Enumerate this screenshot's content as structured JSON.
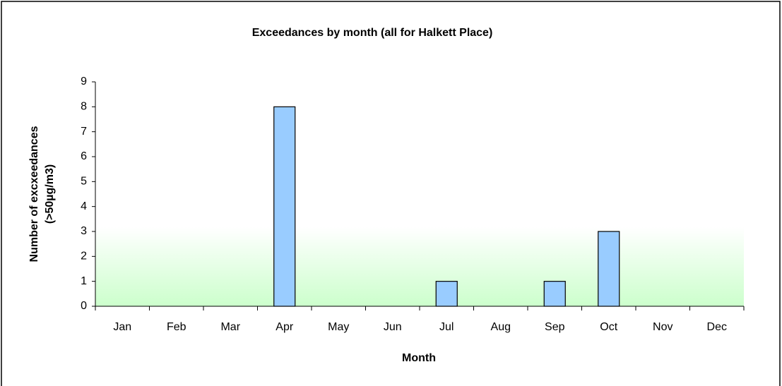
{
  "chart_data": {
    "type": "bar",
    "title": "Exceedances by month (all for Halkett Place)",
    "xlabel": "Month",
    "ylabel": [
      "Number of excxeedances",
      "(>50µg/m3)"
    ],
    "categories": [
      "Jan",
      "Feb",
      "Mar",
      "Apr",
      "May",
      "Jun",
      "Jul",
      "Aug",
      "Sep",
      "Oct",
      "Nov",
      "Dec"
    ],
    "values": [
      0,
      0,
      0,
      8,
      0,
      0,
      1,
      0,
      1,
      3,
      0,
      0
    ],
    "color": "#99ccff",
    "ylim": [
      0,
      9
    ],
    "yticks": [
      0,
      1,
      2,
      3,
      4,
      5,
      6,
      7,
      8,
      9
    ],
    "grid": false
  }
}
